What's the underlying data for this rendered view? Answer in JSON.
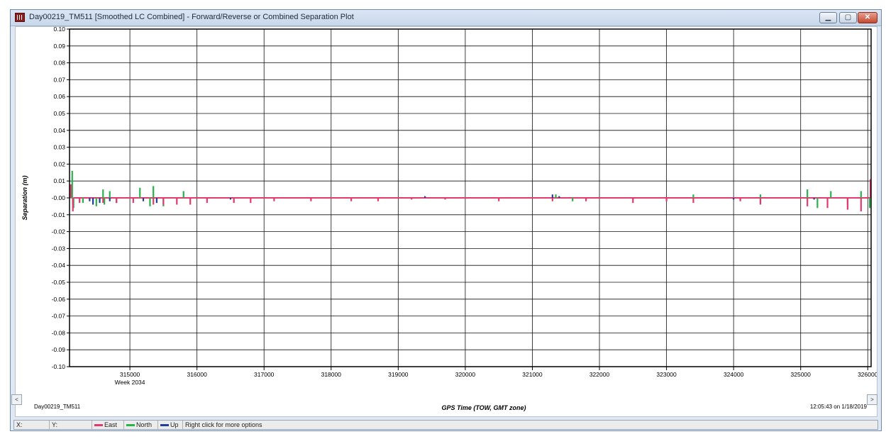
{
  "window": {
    "title": "Day00219_TM511 [Smoothed LC Combined] - Forward/Reverse or Combined Separation Plot",
    "icons": {
      "app": "plot-window-icon",
      "minimize": "minimize-icon",
      "maximize": "maximize-icon",
      "close": "close-icon"
    }
  },
  "footer": {
    "dataset_label": "Day00219_TM511",
    "xlabel": "GPS Time (TOW, GMT zone)",
    "timestamp": "12:05:43 on 1/18/2019",
    "week_label": "Week 2034"
  },
  "statusbar": {
    "x_label": "X:",
    "y_label": "Y:",
    "hint": "Right click for more options"
  },
  "chart_data": {
    "type": "line",
    "title": "",
    "xlabel": "GPS Time (TOW, GMT zone)",
    "ylabel": "Separation (m)",
    "xlim": [
      314100,
      326050
    ],
    "ylim": [
      -0.1,
      0.1
    ],
    "grid": true,
    "legend_placement": "status bar",
    "x_ticks": [
      315000,
      316000,
      317000,
      318000,
      319000,
      320000,
      321000,
      322000,
      323000,
      324000,
      325000,
      326000
    ],
    "x_tick_labels": [
      "315000",
      "316000",
      "317000",
      "318000",
      "319000",
      "320000",
      "321000",
      "322000",
      "323000",
      "324000",
      "325000",
      "326000"
    ],
    "y_ticks": [
      0.1,
      0.09,
      0.08,
      0.07,
      0.06,
      0.05,
      0.04,
      0.03,
      0.02,
      0.01,
      0.0,
      -0.01,
      -0.02,
      -0.03,
      -0.04,
      -0.05,
      -0.06,
      -0.07,
      -0.08,
      -0.09,
      -0.1
    ],
    "y_tick_labels": [
      "0.10",
      "0.09",
      "0.08",
      "0.07",
      "0.06",
      "0.05",
      "0.04",
      "0.03",
      "0.02",
      "0.01",
      "-0.00",
      "-0.01",
      "-0.02",
      "-0.03",
      "-0.04",
      "-0.05",
      "-0.06",
      "-0.07",
      "-0.08",
      "-0.09",
      "-0.10"
    ],
    "series": [
      {
        "name": "Up",
        "color": "#1f3f99",
        "x": [
          314150,
          314400,
          314450,
          314550,
          314700,
          315200,
          315400,
          316500,
          317700,
          319400,
          321300,
          321400,
          322500,
          324000,
          325200
        ],
        "y": [
          -0.004,
          -0.002,
          -0.004,
          -0.003,
          -0.002,
          -0.002,
          -0.003,
          -0.001,
          -0.001,
          0.001,
          0.002,
          0.001,
          -0.001,
          -0.001,
          -0.001
        ]
      },
      {
        "name": "North",
        "color": "#27b34a",
        "x": [
          314120,
          314140,
          314160,
          314300,
          314500,
          314600,
          314620,
          314700,
          314800,
          315150,
          315300,
          315350,
          315500,
          315800,
          321350,
          321600,
          323400,
          324400,
          325100,
          325250,
          325450,
          325700,
          325900,
          326030
        ],
        "y": [
          0.008,
          0.016,
          -0.006,
          -0.003,
          -0.005,
          0.005,
          -0.004,
          0.004,
          -0.003,
          0.006,
          -0.005,
          0.007,
          -0.005,
          0.004,
          0.002,
          -0.002,
          0.002,
          0.002,
          0.005,
          -0.006,
          0.004,
          -0.004,
          0.004,
          -0.006
        ]
      },
      {
        "name": "East",
        "color": "#e23a6d",
        "x": [
          314120,
          314150,
          314250,
          314600,
          314800,
          315050,
          315350,
          315500,
          315700,
          315900,
          316150,
          316550,
          316800,
          317150,
          317700,
          318300,
          318700,
          319200,
          319700,
          320500,
          321300,
          321800,
          322500,
          323000,
          323400,
          324100,
          324400,
          325100,
          325400,
          325700,
          325900,
          326040
        ],
        "y": [
          0.008,
          -0.008,
          -0.003,
          -0.003,
          -0.003,
          -0.003,
          -0.004,
          -0.004,
          -0.004,
          -0.004,
          -0.003,
          -0.003,
          -0.003,
          -0.002,
          -0.002,
          -0.002,
          -0.002,
          -0.001,
          -0.001,
          -0.002,
          -0.002,
          -0.002,
          -0.003,
          -0.002,
          -0.003,
          -0.002,
          -0.004,
          -0.005,
          -0.006,
          -0.007,
          -0.008,
          0.011
        ]
      }
    ]
  }
}
